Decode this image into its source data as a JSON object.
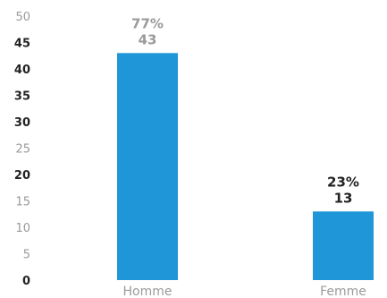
{
  "chart_data": {
    "type": "bar",
    "categories": [
      "Homme",
      "Femme"
    ],
    "values": [
      43,
      13
    ],
    "percent_labels": [
      "77%",
      "23%"
    ],
    "value_labels": [
      "43",
      "13"
    ],
    "ylim": [
      0,
      50
    ],
    "y_ticks": [
      "0",
      "5",
      "10",
      "15",
      "20",
      "25",
      "30",
      "35",
      "40",
      "45",
      "50"
    ],
    "bar_color": "#1f96d8",
    "label_colors": [
      "#9a9a9a",
      "#222222"
    ],
    "grid": false,
    "legend": "none"
  }
}
